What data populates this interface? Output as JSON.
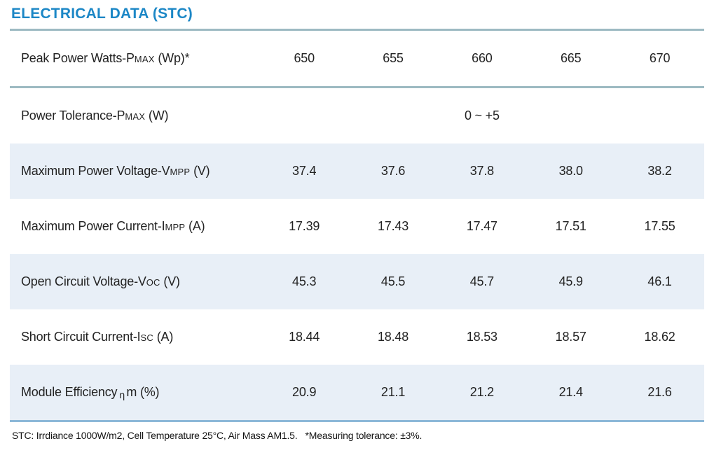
{
  "section": {
    "title": "ELECTRICAL DATA (STC)"
  },
  "colors": {
    "title_blue": "#1c87c6",
    "row_shade": "#e8eff7",
    "rule_gray": "#9dbac2",
    "rule_bottom_blue": "#8cb8d8",
    "text": "#232323"
  },
  "table": {
    "rows": [
      {
        "label": {
          "prefix": "Peak Power Watts-P",
          "sub": "MAX",
          "suffix": " (Wp)*"
        },
        "values": [
          "650",
          "655",
          "660",
          "665",
          "670"
        ]
      },
      {
        "label": {
          "prefix": "Power Tolerance-P",
          "sub": "MAX",
          "suffix": " (W)"
        },
        "merged_value": "0 ~ +5"
      },
      {
        "label": {
          "prefix": "Maximum Power Voltage-V",
          "sub": "MPP",
          "suffix": " (V)"
        },
        "values": [
          "37.4",
          "37.6",
          "37.8",
          "38.0",
          "38.2"
        ]
      },
      {
        "label": {
          "prefix": "Maximum Power Current-I",
          "sub": "MPP",
          "suffix": " (A)"
        },
        "values": [
          "17.39",
          "17.43",
          "17.47",
          "17.51",
          "17.55"
        ]
      },
      {
        "label": {
          "prefix": "Open Circuit Voltage-V",
          "sub": "OC",
          "suffix": " (V)"
        },
        "values": [
          "45.3",
          "45.5",
          "45.7",
          "45.9",
          "46.1"
        ]
      },
      {
        "label": {
          "prefix": "Short Circuit Current-I",
          "sub": "SC",
          "suffix": " (A)"
        },
        "values": [
          "18.44",
          "18.48",
          "18.53",
          "18.57",
          "18.62"
        ]
      },
      {
        "label": {
          "prefix": "Module Efficiency",
          "sub": "η",
          "suffix": "m (%)"
        },
        "values": [
          "20.9",
          "21.1",
          "21.2",
          "21.4",
          "21.6"
        ]
      }
    ]
  },
  "footnote": "STC: Irrdiance 1000W/m2, Cell Temperature 25°C, Air Mass AM1.5.   *Measuring tolerance: ±3%."
}
